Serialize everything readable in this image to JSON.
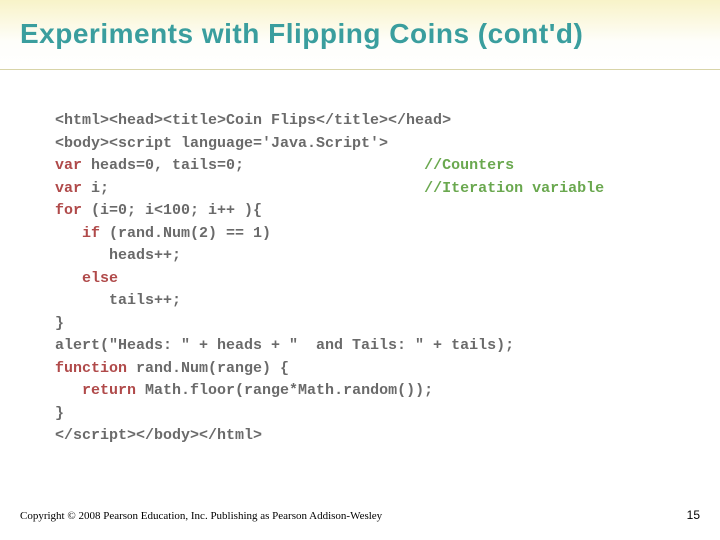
{
  "slide": {
    "title": "Experiments with Flipping Coins (cont'd)",
    "copyright": "Copyright © 2008 Pearson Education, Inc. Publishing as Pearson Addison-Wesley",
    "page_number": "15"
  },
  "code": {
    "lines": [
      {
        "segments": [
          {
            "t": "<html><head><title>Coin Flips</title></head>",
            "c": "plain"
          }
        ]
      },
      {
        "segments": [
          {
            "t": "<body><script language='Java.Script'>",
            "c": "plain"
          }
        ]
      },
      {
        "segments": [
          {
            "t": "var",
            "c": "kw"
          },
          {
            "t": " heads=0, tails=0;                    ",
            "c": "plain"
          },
          {
            "t": "//Counters",
            "c": "comment"
          }
        ]
      },
      {
        "segments": [
          {
            "t": "var",
            "c": "kw"
          },
          {
            "t": " i;                                   ",
            "c": "plain"
          },
          {
            "t": "//Iteration variable",
            "c": "comment"
          }
        ]
      },
      {
        "segments": [
          {
            "t": "for",
            "c": "kw"
          },
          {
            "t": " (i=0; i<100; i++ ){",
            "c": "plain"
          }
        ]
      },
      {
        "segments": [
          {
            "t": "   ",
            "c": "plain"
          },
          {
            "t": "if",
            "c": "kw"
          },
          {
            "t": " (rand.Num(2) == 1)",
            "c": "plain"
          }
        ]
      },
      {
        "segments": [
          {
            "t": "      heads++;",
            "c": "plain"
          }
        ]
      },
      {
        "segments": [
          {
            "t": "   ",
            "c": "plain"
          },
          {
            "t": "else",
            "c": "kw"
          }
        ]
      },
      {
        "segments": [
          {
            "t": "      tails++;",
            "c": "plain"
          }
        ]
      },
      {
        "segments": [
          {
            "t": "}",
            "c": "plain"
          }
        ]
      },
      {
        "segments": [
          {
            "t": "alert(\"Heads: \" + heads + \"  and Tails: \" + tails);",
            "c": "plain"
          }
        ]
      },
      {
        "segments": [
          {
            "t": "function",
            "c": "kw"
          },
          {
            "t": " rand.Num(range) {",
            "c": "plain"
          }
        ]
      },
      {
        "segments": [
          {
            "t": "   ",
            "c": "plain"
          },
          {
            "t": "return",
            "c": "kw"
          },
          {
            "t": " Math.floor(range*Math.random());",
            "c": "plain"
          }
        ]
      },
      {
        "segments": [
          {
            "t": "}",
            "c": "plain"
          }
        ]
      },
      {
        "segments": [
          {
            "t": "</script></body></html>",
            "c": "plain"
          }
        ]
      }
    ]
  },
  "style": {
    "title_color": "#3a9e9e",
    "keyword_color": "#b04a4a",
    "comment_color": "#6aa84f",
    "code_color": "#6a6a6a",
    "header_gradient_top": "#f8f3c8",
    "background": "#ffffff",
    "code_font": "Courier New",
    "code_fontsize": 15,
    "title_fontsize": 28
  }
}
